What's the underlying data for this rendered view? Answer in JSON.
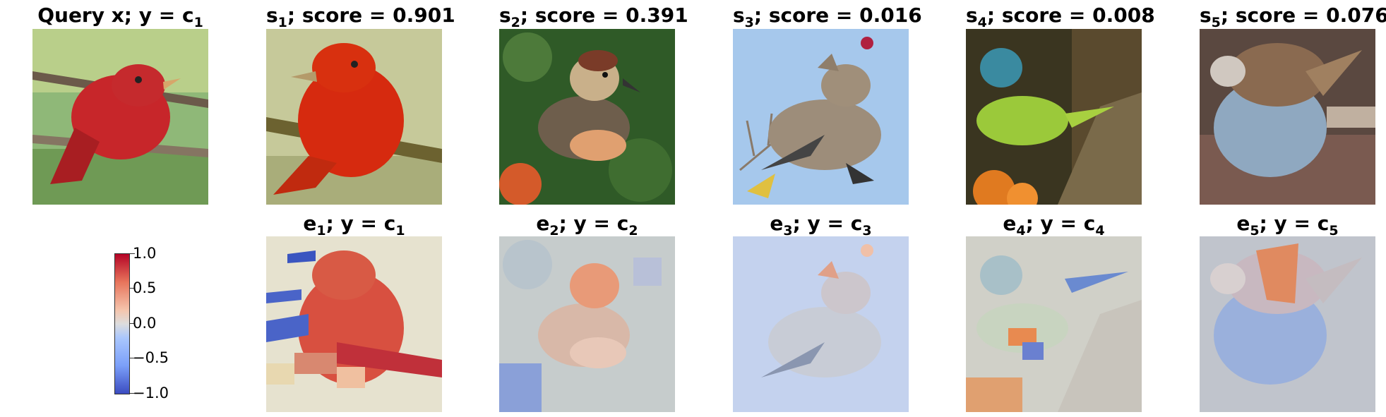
{
  "query": {
    "title_main": "Query x; y = c",
    "title_sub": "1"
  },
  "top_row": [
    {
      "prefix": "s",
      "sub": "1",
      "rest": "; score = 0.901"
    },
    {
      "prefix": "s",
      "sub": "2",
      "rest": "; score = 0.391"
    },
    {
      "prefix": "s",
      "sub": "3",
      "rest": "; score = 0.016"
    },
    {
      "prefix": "s",
      "sub": "4",
      "rest": "; score = 0.008"
    },
    {
      "prefix": "s",
      "sub": "5",
      "rest": "; score = 0.076"
    }
  ],
  "bottom_row": [
    {
      "prefix": "e",
      "sub": "1",
      "mid": "; y = c",
      "sub2": "1"
    },
    {
      "prefix": "e",
      "sub": "2",
      "mid": "; y = c",
      "sub2": "2"
    },
    {
      "prefix": "e",
      "sub": "3",
      "mid": "; y = c",
      "sub2": "3"
    },
    {
      "prefix": "e",
      "sub": "4",
      "mid": "; y = c",
      "sub2": "4"
    },
    {
      "prefix": "e",
      "sub": "5",
      "mid": "; y = c",
      "sub2": "5"
    }
  ],
  "colorbar": {
    "ticks": [
      "1.0",
      "0.5",
      "0.0",
      "−0.5",
      "−1.0"
    ],
    "low_color": "#3b4cc0",
    "mid_color": "#dddddd",
    "high_color": "#b40426"
  },
  "images": {
    "query": "red bird on branch",
    "s1": "red bird on branch",
    "s2": "brown striped bird",
    "s3": "grey waxwing bird with berry",
    "s4": "green bird on trunk",
    "s5": "sparrow on seeds"
  }
}
